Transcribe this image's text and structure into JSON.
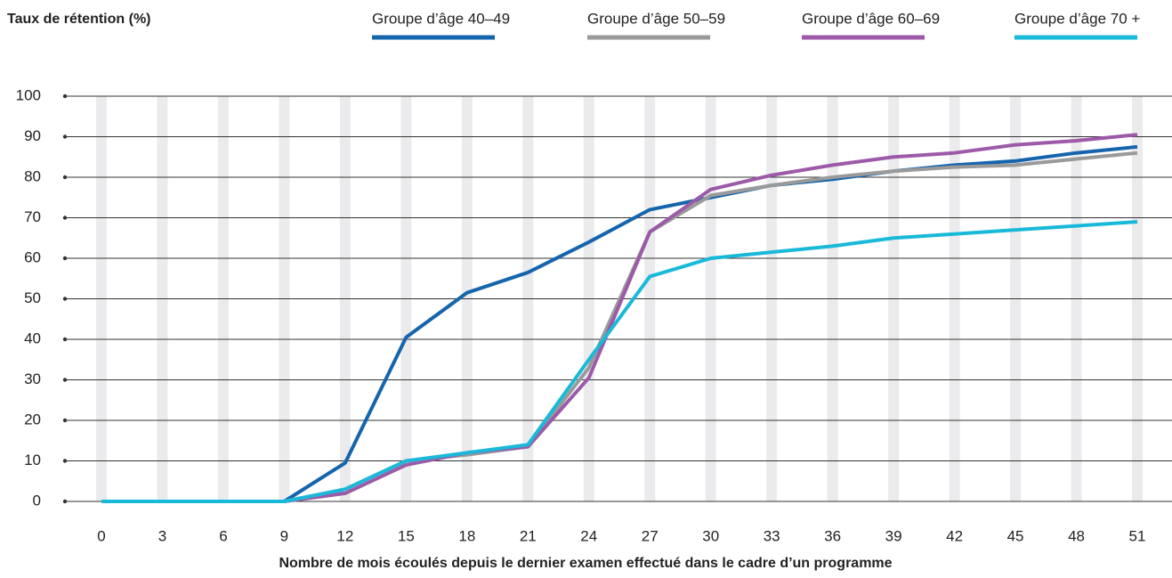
{
  "chart_data": {
    "type": "line",
    "title": "Taux de rétention (%)",
    "x_label": "Nombre de mois écoulés depuis le dernier examen effectué dans le cadre d’un programme",
    "x": [
      0,
      3,
      6,
      9,
      12,
      15,
      18,
      21,
      24,
      27,
      30,
      33,
      36,
      39,
      42,
      45,
      48,
      51
    ],
    "xlim": [
      0,
      51
    ],
    "xticks": [
      0,
      3,
      6,
      9,
      12,
      15,
      18,
      21,
      24,
      27,
      30,
      33,
      36,
      39,
      42,
      45,
      48,
      51
    ],
    "ylim": [
      0,
      100
    ],
    "yticks": [
      0,
      10,
      20,
      30,
      40,
      50,
      60,
      70,
      80,
      90,
      100
    ],
    "grid": true,
    "legend": "top",
    "series": [
      {
        "name": "Groupe d’âge 40–49",
        "color": "#1565ad",
        "values": [
          0,
          0,
          0,
          0,
          9.5,
          40.5,
          51.5,
          56.5,
          64,
          72,
          75,
          78,
          79.5,
          81.5,
          83,
          84,
          86,
          87.5
        ]
      },
      {
        "name": "Groupe d’âge 50–59",
        "color": "#9a9a9a",
        "values": [
          0,
          0,
          0,
          0,
          3,
          10,
          11.5,
          13.5,
          33,
          66.5,
          75.5,
          78,
          80,
          81.5,
          82.5,
          83,
          84.5,
          86
        ]
      },
      {
        "name": "Groupe d’âge 60–69",
        "color": "#9c5aa8",
        "values": [
          0,
          0,
          0,
          0,
          2,
          9,
          12,
          13.5,
          30.5,
          66.5,
          77,
          80.5,
          83,
          85,
          86,
          88,
          89,
          90.5
        ]
      },
      {
        "name": "Groupe d’âge 70 +",
        "color": "#1ab9d9",
        "values": [
          0,
          0,
          0,
          0,
          3,
          10,
          12,
          14,
          35,
          55.5,
          60,
          61.5,
          63,
          65,
          66,
          67,
          68,
          69
        ]
      }
    ]
  }
}
